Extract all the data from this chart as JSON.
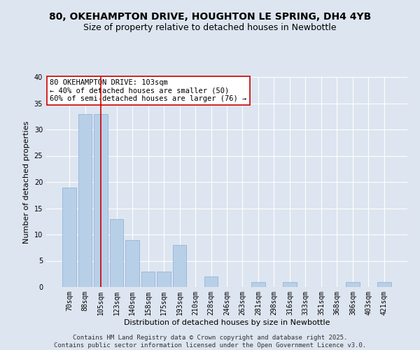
{
  "title1": "80, OKEHAMPTON DRIVE, HOUGHTON LE SPRING, DH4 4YB",
  "title2": "Size of property relative to detached houses in Newbottle",
  "xlabel": "Distribution of detached houses by size in Newbottle",
  "ylabel": "Number of detached properties",
  "categories": [
    "70sqm",
    "88sqm",
    "105sqm",
    "123sqm",
    "140sqm",
    "158sqm",
    "175sqm",
    "193sqm",
    "210sqm",
    "228sqm",
    "246sqm",
    "263sqm",
    "281sqm",
    "298sqm",
    "316sqm",
    "333sqm",
    "351sqm",
    "368sqm",
    "386sqm",
    "403sqm",
    "421sqm"
  ],
  "values": [
    19,
    33,
    33,
    13,
    9,
    3,
    3,
    8,
    0,
    2,
    0,
    0,
    1,
    0,
    1,
    0,
    0,
    0,
    1,
    0,
    1
  ],
  "bar_color": "#b8cfe8",
  "bar_edge_color": "#8aafd4",
  "vline_x_index": 2,
  "vline_color": "#cc0000",
  "annotation_lines": [
    "80 OKEHAMPTON DRIVE: 103sqm",
    "← 40% of detached houses are smaller (50)",
    "60% of semi-detached houses are larger (76) →"
  ],
  "annotation_box_color": "#ffffff",
  "annotation_box_edge": "#cc0000",
  "ylim": [
    0,
    40
  ],
  "yticks": [
    0,
    5,
    10,
    15,
    20,
    25,
    30,
    35,
    40
  ],
  "bg_color": "#dde5f0",
  "grid_color": "#ffffff",
  "footer": "Contains HM Land Registry data © Crown copyright and database right 2025.\nContains public sector information licensed under the Open Government Licence v3.0.",
  "title_fontsize": 10,
  "subtitle_fontsize": 9,
  "axis_label_fontsize": 8,
  "tick_fontsize": 7,
  "annotation_fontsize": 7.5,
  "footer_fontsize": 6.5
}
